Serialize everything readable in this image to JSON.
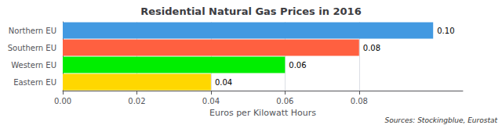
{
  "chart_data": {
    "type": "bar",
    "orientation": "horizontal",
    "title": "Residential Natural Gas Prices in 2016",
    "categories": [
      "Eastern EU",
      "Western EU",
      "Southern EU",
      "Northern EU"
    ],
    "values": [
      0.04,
      0.06,
      0.08,
      0.1
    ],
    "value_labels": [
      "0.04",
      "0.06",
      "0.08",
      "0.10"
    ],
    "data_labels": true,
    "colors": [
      "#FFD700",
      "#00EE00",
      "#FF6040",
      "#4299E1"
    ],
    "xlabel": "Euros per Kilowatt Hours",
    "xlim": [
      0,
      0.108
    ],
    "xticks": [
      {
        "value": 0,
        "label": "0.00"
      },
      0.02,
      0.04,
      0.06,
      0.08
    ],
    "grid": true,
    "annotations": [
      "Sources: Stockingblue, Eurostat"
    ]
  }
}
